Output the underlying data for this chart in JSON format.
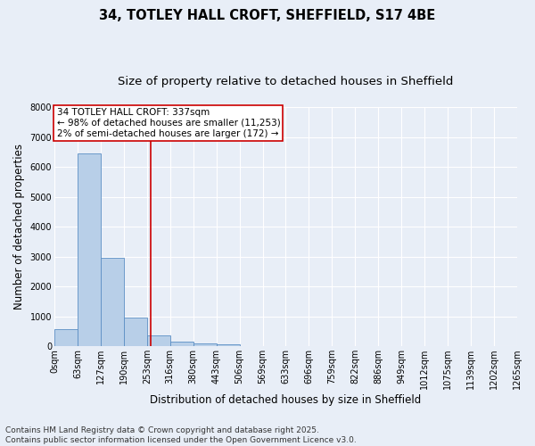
{
  "title_line1": "34, TOTLEY HALL CROFT, SHEFFIELD, S17 4BE",
  "title_line2": "Size of property relative to detached houses in Sheffield",
  "xlabel": "Distribution of detached houses by size in Sheffield",
  "ylabel": "Number of detached properties",
  "bar_values": [
    570,
    6450,
    2970,
    960,
    360,
    150,
    100,
    60,
    0,
    0,
    0,
    0,
    0,
    0,
    0,
    0,
    0,
    0,
    0,
    0
  ],
  "bar_labels": [
    "0sqm",
    "63sqm",
    "127sqm",
    "190sqm",
    "253sqm",
    "316sqm",
    "380sqm",
    "443sqm",
    "506sqm",
    "569sqm",
    "633sqm",
    "696sqm",
    "759sqm",
    "822sqm",
    "886sqm",
    "949sqm",
    "1012sqm",
    "1075sqm",
    "1139sqm",
    "1202sqm",
    "1265sqm"
  ],
  "bar_color": "#b8cfe8",
  "bar_edge_color": "#5b8ec4",
  "background_color": "#e8eef7",
  "grid_color": "#ffffff",
  "vline_x_index": 4.15,
  "vline_color": "#cc0000",
  "annotation_text": "34 TOTLEY HALL CROFT: 337sqm\n← 98% of detached houses are smaller (11,253)\n2% of semi-detached houses are larger (172) →",
  "annotation_box_color": "#ffffff",
  "annotation_box_edge": "#cc0000",
  "ylim": [
    0,
    8000
  ],
  "yticks": [
    0,
    1000,
    2000,
    3000,
    4000,
    5000,
    6000,
    7000,
    8000
  ],
  "footnote_line1": "Contains HM Land Registry data © Crown copyright and database right 2025.",
  "footnote_line2": "Contains public sector information licensed under the Open Government Licence v3.0.",
  "title_fontsize": 10.5,
  "subtitle_fontsize": 9.5,
  "axis_label_fontsize": 8.5,
  "tick_fontsize": 7,
  "annotation_fontsize": 7.5,
  "footnote_fontsize": 6.5
}
